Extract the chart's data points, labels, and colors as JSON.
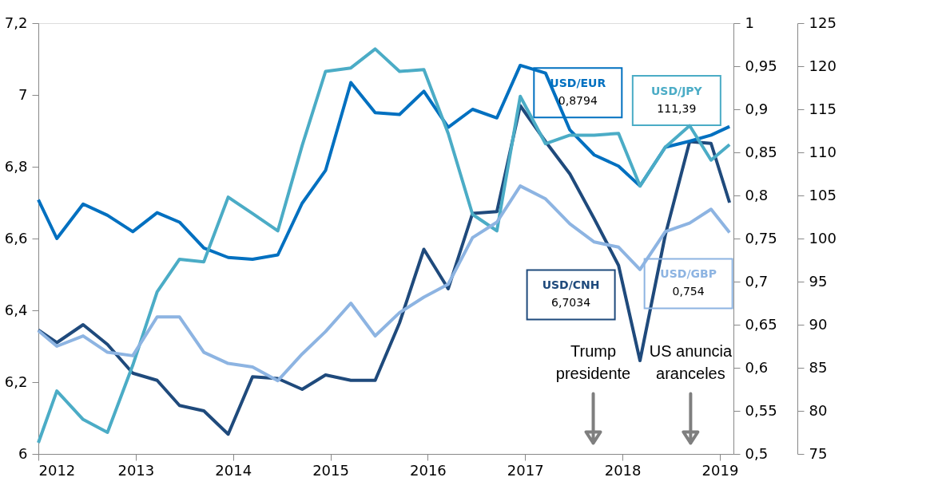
{
  "chart_data": {
    "type": "line",
    "x": [
      2012.0,
      2012.19,
      2012.46,
      2012.71,
      2012.97,
      2013.22,
      2013.45,
      2013.7,
      2013.95,
      2014.2,
      2014.46,
      2014.71,
      2014.95,
      2015.21,
      2015.46,
      2015.71,
      2015.96,
      2016.21,
      2016.46,
      2016.71,
      2016.95,
      2017.21,
      2017.46,
      2017.71,
      2017.96,
      2018.18,
      2018.44,
      2018.69,
      2018.91,
      2019.1
    ],
    "series": [
      {
        "name": "USD/CNH",
        "color": "#1f4a7c",
        "axis": "y",
        "values": [
          6.345,
          6.31,
          6.36,
          6.305,
          6.225,
          6.205,
          6.135,
          6.12,
          6.055,
          6.215,
          6.21,
          6.18,
          6.22,
          6.205,
          6.205,
          6.365,
          6.57,
          6.46,
          6.67,
          6.675,
          6.97,
          6.87,
          6.78,
          6.655,
          6.525,
          6.26,
          6.61,
          6.87,
          6.865,
          6.7
        ]
      },
      {
        "name": "USD/EUR",
        "color": "#0070c0",
        "axis": "y2",
        "values": [
          0.795,
          0.75,
          0.79,
          0.777,
          0.758,
          0.78,
          0.769,
          0.739,
          0.728,
          0.726,
          0.731,
          0.791,
          0.829,
          0.931,
          0.896,
          0.894,
          0.921,
          0.879,
          0.9,
          0.89,
          0.951,
          0.942,
          0.876,
          0.847,
          0.834,
          0.811,
          0.856,
          0.863,
          0.87,
          0.88
        ]
      },
      {
        "name": "USD/JPY",
        "color": "#4bacc6",
        "axis": "y3",
        "values": [
          76.3,
          82.3,
          79.0,
          77.5,
          85.3,
          93.8,
          97.6,
          97.3,
          104.8,
          102.9,
          100.9,
          110.8,
          119.4,
          119.8,
          122.0,
          119.4,
          119.6,
          112.2,
          102.8,
          100.9,
          116.5,
          111.0,
          112.0,
          112.0,
          112.2,
          106.1,
          110.6,
          113.1,
          109.1,
          110.9
        ]
      },
      {
        "name": "USD/GBP",
        "color": "#8db4e2",
        "axis": "y2",
        "values": [
          0.643,
          0.625,
          0.637,
          0.618,
          0.614,
          0.659,
          0.659,
          0.618,
          0.605,
          0.601,
          0.585,
          0.616,
          0.642,
          0.675,
          0.637,
          0.664,
          0.682,
          0.697,
          0.751,
          0.769,
          0.811,
          0.796,
          0.767,
          0.746,
          0.74,
          0.714,
          0.758,
          0.768,
          0.784,
          0.757
        ]
      }
    ],
    "xlim": [
      2012,
      2019.14
    ],
    "xticks": [
      2012,
      2013,
      2014,
      2015,
      2016,
      2017,
      2018,
      2019
    ],
    "ylim": [
      6,
      7.2
    ],
    "yticks": [
      6,
      {
        "value": 6.2,
        "label": "6,2"
      },
      {
        "value": 6.4,
        "label": "6,4"
      },
      {
        "value": 6.6,
        "label": "6,6"
      },
      {
        "value": 6.8,
        "label": "6,8"
      },
      7,
      {
        "value": 7.2,
        "label": "7,2"
      }
    ],
    "y2lim": [
      0.5,
      1
    ],
    "y2ticks": [
      {
        "value": 0.5,
        "label": "0,5"
      },
      {
        "value": 0.55,
        "label": "0,55"
      },
      {
        "value": 0.6,
        "label": "0,6"
      },
      {
        "value": 0.65,
        "label": "0,65"
      },
      {
        "value": 0.7,
        "label": "0,7"
      },
      {
        "value": 0.75,
        "label": "0,75"
      },
      {
        "value": 0.8,
        "label": "0,8"
      },
      {
        "value": 0.85,
        "label": "0,85"
      },
      {
        "value": 0.9,
        "label": "0,9"
      },
      {
        "value": 0.95,
        "label": "0,95"
      },
      1
    ],
    "y3lim": [
      75,
      125
    ],
    "y3ticks": [
      75,
      80,
      85,
      90,
      95,
      100,
      105,
      110,
      115,
      120,
      125
    ],
    "annotations": [
      "6,7034",
      "0,8794",
      "111,39",
      "0,754",
      {
        "text": "Trump\npresidente",
        "x": 2017.7
      },
      {
        "text": "US anuncia\naranceles",
        "x": 2018.7
      }
    ],
    "grid": false,
    "marker": "none",
    "line_style": "solid"
  }
}
